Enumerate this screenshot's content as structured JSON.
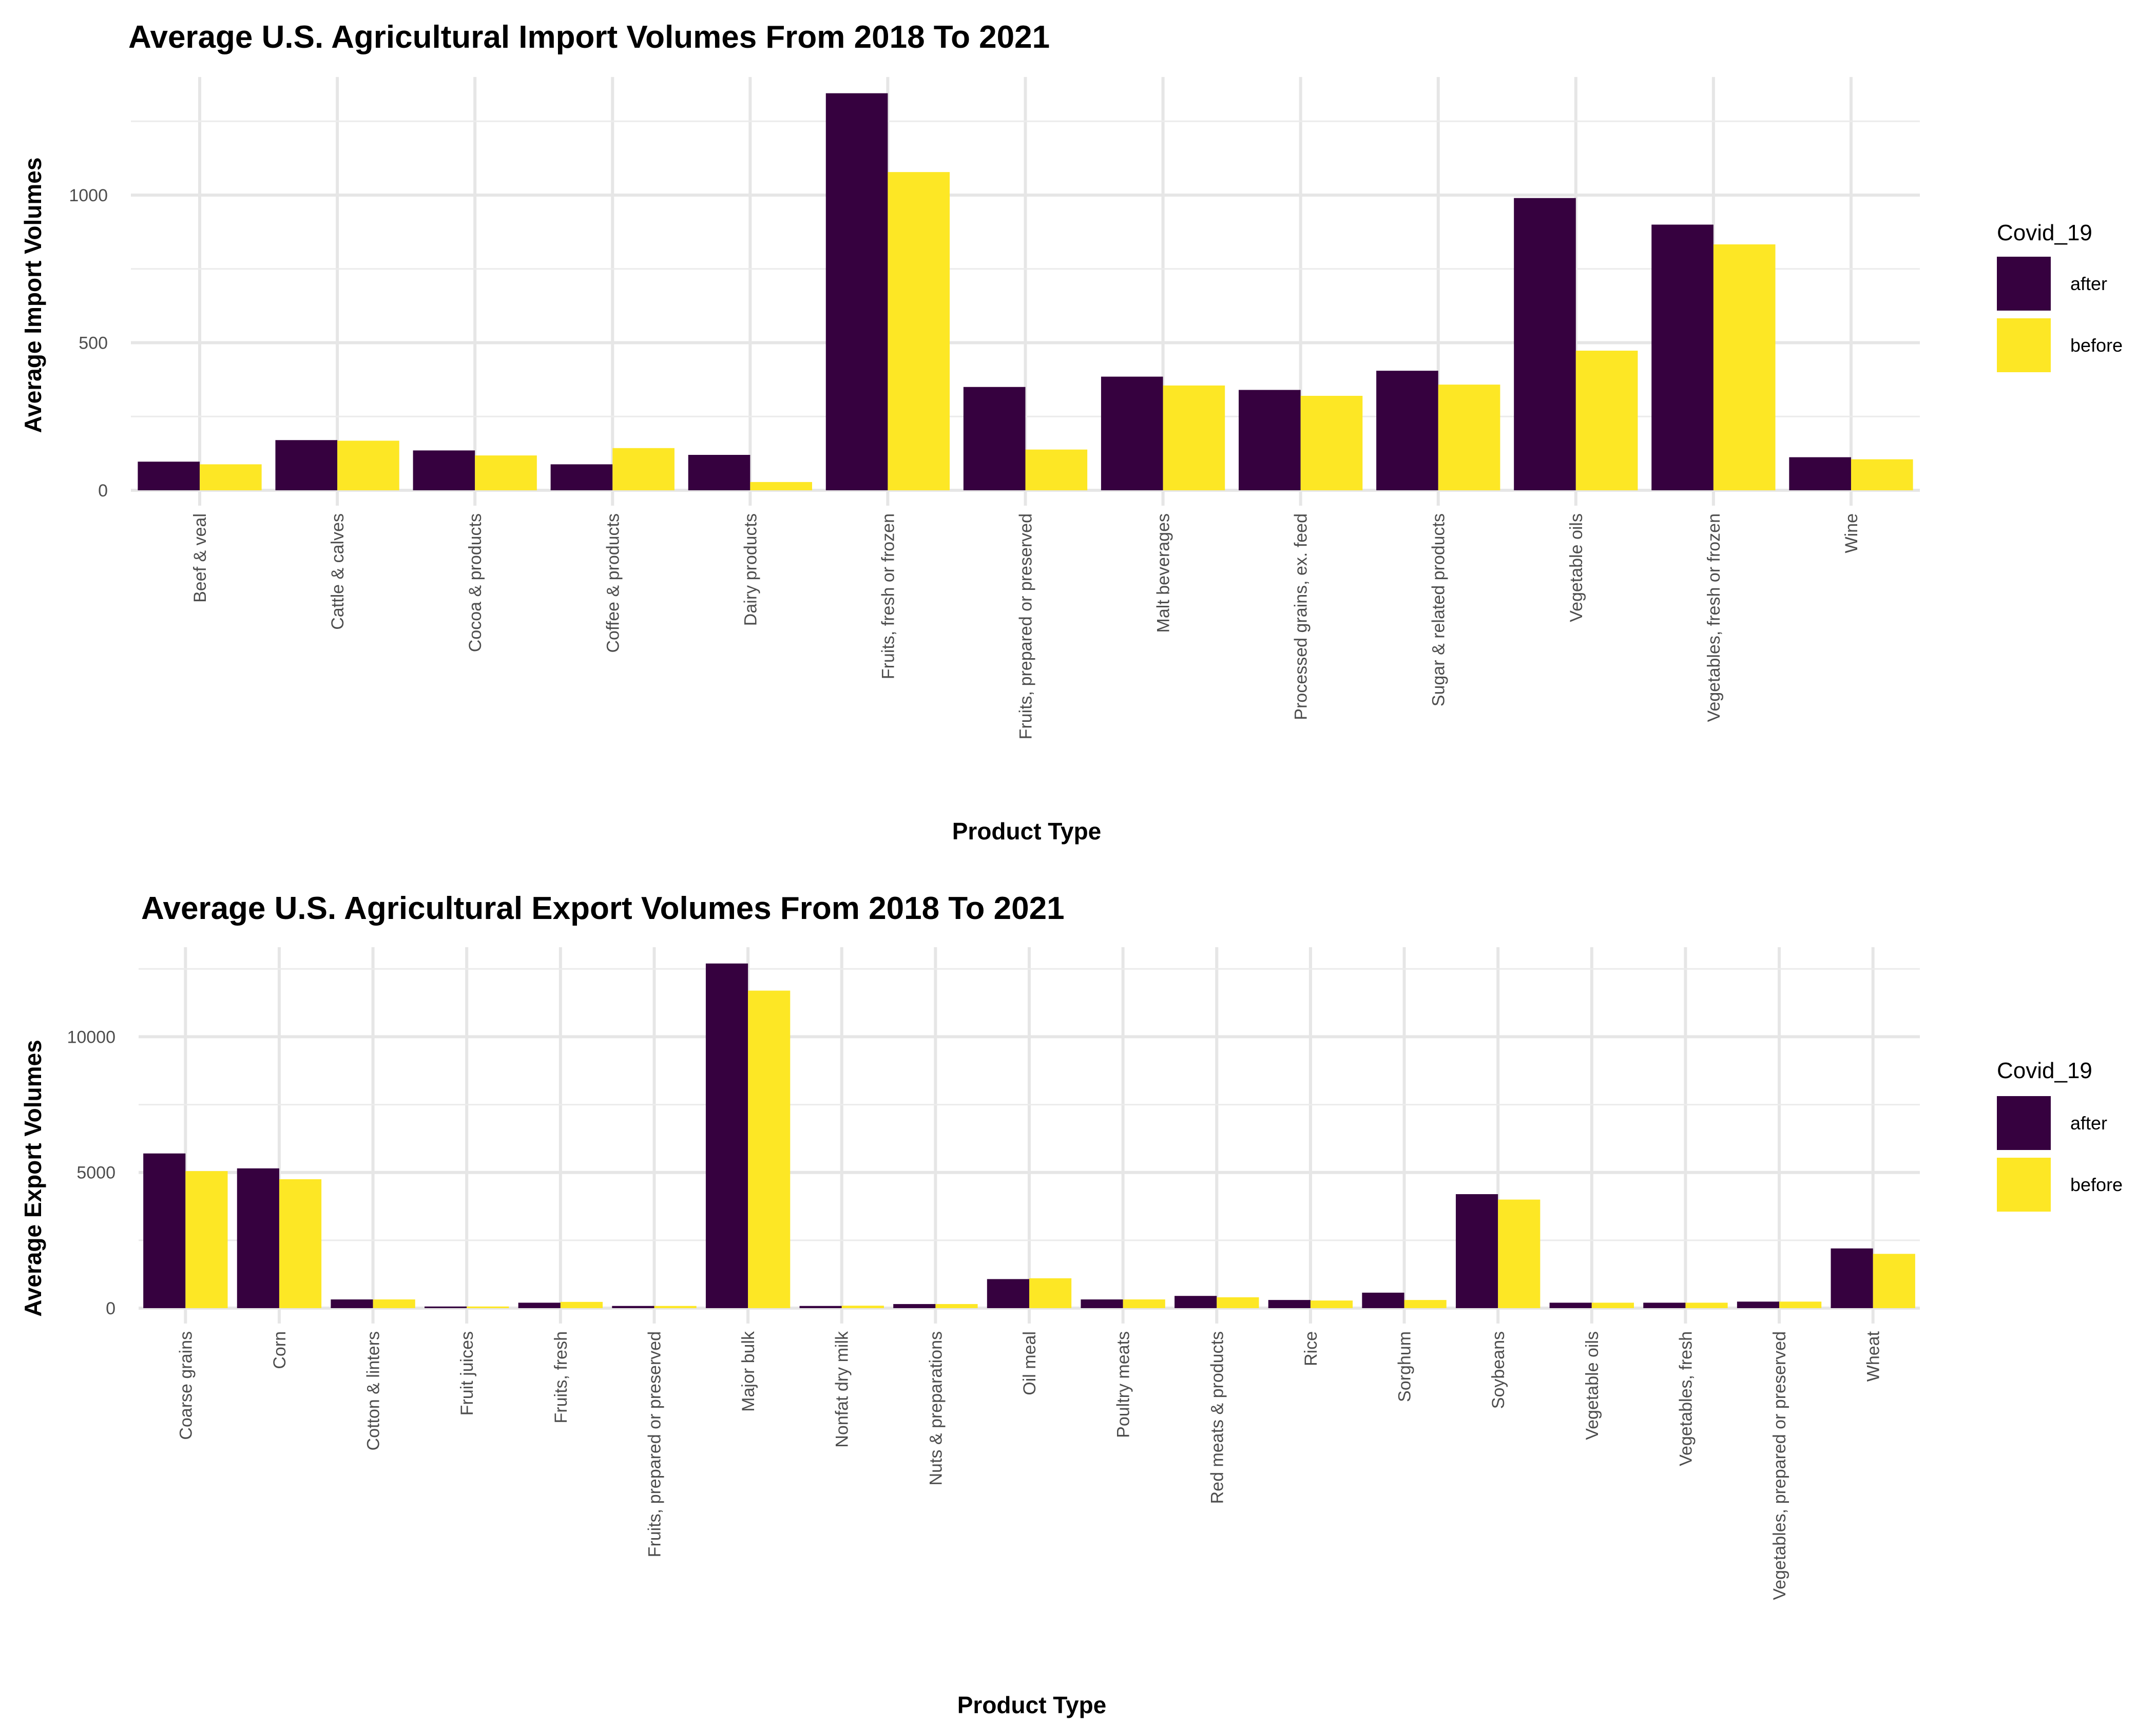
{
  "colors": {
    "after": "#36013F",
    "before": "#FDE725"
  },
  "chart_data": [
    {
      "type": "bar",
      "title": "Average U.S. Agricultural Import Volumes From 2018 To 2021",
      "xlabel": "Product Type",
      "ylabel": "Average Import Volumes",
      "ylim": [
        0,
        1400
      ],
      "yticks": [
        0,
        500,
        1000
      ],
      "ytick_labels": [
        "0",
        "500",
        "1000"
      ],
      "legend": {
        "title": "Covid_19",
        "position": "right"
      },
      "grid": true,
      "categories": [
        "Beef & veal",
        "Cattle & calves",
        "Cocoa & products",
        "Coffee & products",
        "Dairy products",
        "Fruits, fresh or frozen",
        "Fruits, prepared or preserved",
        "Malt beverages",
        "Processed grains, ex. feed",
        "Sugar & related products",
        "Vegetable oils",
        "Vegetables, fresh or frozen",
        "Wine"
      ],
      "series": [
        {
          "name": "after",
          "values": [
            97,
            170,
            135,
            88,
            120,
            1345,
            350,
            385,
            340,
            405,
            990,
            900,
            112
          ]
        },
        {
          "name": "before",
          "values": [
            88,
            168,
            118,
            143,
            28,
            1078,
            138,
            355,
            320,
            358,
            473,
            833,
            105
          ]
        }
      ]
    },
    {
      "type": "bar",
      "title": "Average U.S. Agricultural Export Volumes From 2018 To 2021",
      "xlabel": "Product Type",
      "ylabel": "Average Export Volumes",
      "ylim": [
        0,
        13300
      ],
      "yticks": [
        0,
        5000,
        10000
      ],
      "ytick_labels": [
        "0",
        "5000",
        "10000"
      ],
      "legend": {
        "title": "Covid_19",
        "position": "right"
      },
      "grid": true,
      "categories": [
        "Coarse grains",
        "Corn",
        "Cotton & linters",
        "Fruit juices",
        "Fruits, fresh",
        "Fruits, prepared or preserved",
        "Major bulk",
        "Nonfat dry milk",
        "Nuts & preparations",
        "Oil meal",
        "Poultry meats",
        "Red meats & products",
        "Rice",
        "Sorghum",
        "Soybeans",
        "Vegetable oils",
        "Vegetables, fresh",
        "Vegetables, prepared or preserved",
        "Wheat"
      ],
      "series": [
        {
          "name": "after",
          "values": [
            5700,
            5150,
            320,
            60,
            200,
            80,
            12700,
            80,
            150,
            1070,
            320,
            450,
            300,
            570,
            4200,
            200,
            200,
            240,
            2200
          ]
        },
        {
          "name": "before",
          "values": [
            5050,
            4750,
            320,
            60,
            230,
            80,
            11700,
            90,
            150,
            1100,
            320,
            400,
            280,
            300,
            4000,
            200,
            200,
            240,
            2000
          ]
        }
      ]
    }
  ]
}
